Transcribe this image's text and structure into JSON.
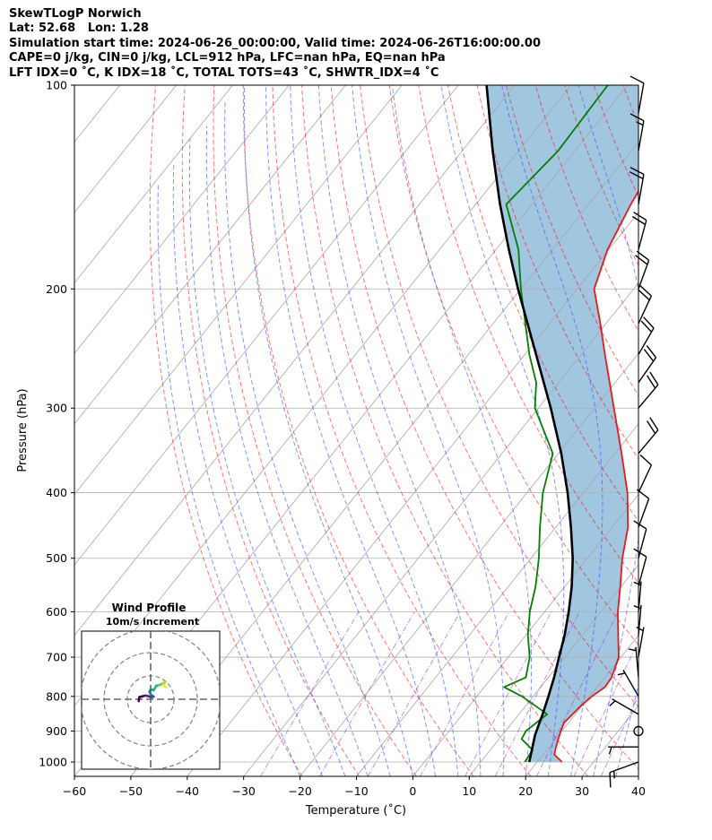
{
  "header": {
    "line1": "SkewTLogP Norwich",
    "line2": "Lat: 52.68   Lon: 1.28",
    "line3": "Simulation start time: 2024-06-26_00:00:00, Valid time: 2024-06-26T16:00:00.00",
    "line4": "CAPE=0 j/kg, CIN=0 j/kg, LCL=912 hPa, LFC=nan hPa, EQ=nan hPa",
    "line5": "LFT IDX=0$^\\circ$C, K IDX=18$^\\circ$C, TOTAL TOTS=43$^\\circ$C, SHWTR_IDX=4$^\\circ$C"
  },
  "chart_data": {
    "type": "line",
    "xlabel": "Temperature ($^\\circ$C)",
    "ylabel": "Pressure (hPa)",
    "xlim": [
      -60,
      40
    ],
    "ylim": [
      1050,
      100
    ],
    "yscale": "log",
    "x_ticks": [
      -60,
      -50,
      -40,
      -30,
      -20,
      -10,
      0,
      10,
      20,
      30,
      40
    ],
    "y_ticks": [
      1000,
      900,
      800,
      700,
      600,
      500,
      400,
      300,
      200,
      100
    ],
    "grid": true,
    "series": [
      {
        "role": "temperature",
        "color": "#e41a1c",
        "points": [
          {
            "p": 1000,
            "t": 24.4
          },
          {
            "p": 975,
            "t": 22.0
          },
          {
            "p": 950,
            "t": 21.2
          },
          {
            "p": 925,
            "t": 20.5
          },
          {
            "p": 900,
            "t": 19.8
          },
          {
            "p": 875,
            "t": 19.2
          },
          {
            "p": 850,
            "t": 19.5
          },
          {
            "p": 825,
            "t": 19.8
          },
          {
            "p": 800,
            "t": 20.4
          },
          {
            "p": 775,
            "t": 21.4
          },
          {
            "p": 750,
            "t": 21.2
          },
          {
            "p": 700,
            "t": 19.6
          },
          {
            "p": 650,
            "t": 16.4
          },
          {
            "p": 600,
            "t": 13.0
          },
          {
            "p": 550,
            "t": 9.8
          },
          {
            "p": 500,
            "t": 6.2
          },
          {
            "p": 450,
            "t": 2.8
          },
          {
            "p": 400,
            "t": -2.2
          },
          {
            "p": 350,
            "t": -8.8
          },
          {
            "p": 300,
            "t": -16.6
          },
          {
            "p": 250,
            "t": -25.8
          },
          {
            "p": 225,
            "t": -31.0
          },
          {
            "p": 200,
            "t": -37.0
          },
          {
            "p": 175,
            "t": -40.2
          },
          {
            "p": 150,
            "t": -42.5
          },
          {
            "p": 125,
            "t": -44.6
          },
          {
            "p": 100,
            "t": -47.6
          }
        ]
      },
      {
        "role": "dewpoint",
        "color": "#008000",
        "points": [
          {
            "p": 1000,
            "t": 17.8
          },
          {
            "p": 960,
            "t": 17.5
          },
          {
            "p": 925,
            "t": 14.0
          },
          {
            "p": 900,
            "t": 13.6
          },
          {
            "p": 850,
            "t": 15.0
          },
          {
            "p": 800,
            "t": 8.0
          },
          {
            "p": 775,
            "t": 3.5
          },
          {
            "p": 750,
            "t": 6.0
          },
          {
            "p": 700,
            "t": 3.8
          },
          {
            "p": 650,
            "t": 0.4
          },
          {
            "p": 600,
            "t": -2.6
          },
          {
            "p": 550,
            "t": -5.2
          },
          {
            "p": 500,
            "t": -8.6
          },
          {
            "p": 450,
            "t": -12.8
          },
          {
            "p": 400,
            "t": -17.2
          },
          {
            "p": 350,
            "t": -21.0
          },
          {
            "p": 300,
            "t": -30.6
          },
          {
            "p": 275,
            "t": -34.0
          },
          {
            "p": 250,
            "t": -39.2
          },
          {
            "p": 200,
            "t": -50.0
          },
          {
            "p": 175,
            "t": -56.0
          },
          {
            "p": 150,
            "t": -64.6
          },
          {
            "p": 125,
            "t": -63.0
          },
          {
            "p": 100,
            "t": -63.5
          }
        ]
      },
      {
        "role": "parcel",
        "color": "#000000",
        "points": [
          {
            "p": 1000,
            "t": 18.6
          },
          {
            "p": 912,
            "t": 15.8
          },
          {
            "p": 850,
            "t": 14.2
          },
          {
            "p": 800,
            "t": 12.7
          },
          {
            "p": 750,
            "t": 11.0
          },
          {
            "p": 700,
            "t": 9.0
          },
          {
            "p": 650,
            "t": 6.9
          },
          {
            "p": 600,
            "t": 4.3
          },
          {
            "p": 550,
            "t": 1.2
          },
          {
            "p": 500,
            "t": -2.6
          },
          {
            "p": 450,
            "t": -7.3
          },
          {
            "p": 400,
            "t": -12.8
          },
          {
            "p": 350,
            "t": -19.5
          },
          {
            "p": 300,
            "t": -27.8
          },
          {
            "p": 250,
            "t": -38.0
          },
          {
            "p": 200,
            "t": -50.5
          },
          {
            "p": 175,
            "t": -57.7
          },
          {
            "p": 150,
            "t": -65.7
          },
          {
            "p": 125,
            "t": -74.6
          },
          {
            "p": 100,
            "t": -85.0
          }
        ]
      }
    ],
    "wind_barbs": [
      {
        "p": 1000,
        "speed_kt": 15,
        "dir_deg": 250
      },
      {
        "p": 950,
        "speed_kt": 5,
        "dir_deg": 270
      },
      {
        "p": 900,
        "speed_kt": 0,
        "dir_deg": 0
      },
      {
        "p": 850,
        "speed_kt": 5,
        "dir_deg": 300
      },
      {
        "p": 800,
        "speed_kt": 5,
        "dir_deg": 330
      },
      {
        "p": 750,
        "speed_kt": 5,
        "dir_deg": 355
      },
      {
        "p": 700,
        "speed_kt": 5,
        "dir_deg": 10
      },
      {
        "p": 650,
        "speed_kt": 5,
        "dir_deg": 5
      },
      {
        "p": 600,
        "speed_kt": 5,
        "dir_deg": 5
      },
      {
        "p": 550,
        "speed_kt": 10,
        "dir_deg": 15
      },
      {
        "p": 500,
        "speed_kt": 10,
        "dir_deg": 15
      },
      {
        "p": 450,
        "speed_kt": 10,
        "dir_deg": 20
      },
      {
        "p": 400,
        "speed_kt": 10,
        "dir_deg": 25
      },
      {
        "p": 350,
        "speed_kt": 20,
        "dir_deg": 40
      },
      {
        "p": 300,
        "speed_kt": 20,
        "dir_deg": 40
      },
      {
        "p": 275,
        "speed_kt": 20,
        "dir_deg": 35
      },
      {
        "p": 250,
        "speed_kt": 20,
        "dir_deg": 30
      },
      {
        "p": 225,
        "speed_kt": 20,
        "dir_deg": 25
      },
      {
        "p": 200,
        "speed_kt": 20,
        "dir_deg": 20
      },
      {
        "p": 175,
        "speed_kt": 20,
        "dir_deg": 15
      },
      {
        "p": 150,
        "speed_kt": 20,
        "dir_deg": 10
      },
      {
        "p": 125,
        "speed_kt": 15,
        "dir_deg": 10
      },
      {
        "p": 110,
        "speed_kt": 10,
        "dir_deg": 10
      }
    ],
    "inset": {
      "title": "Wind Profile",
      "subtitle": "10m/s increment",
      "hodograph": [
        {
          "u": -3.2,
          "v": -0.5
        },
        {
          "u": -3.0,
          "v": 0.6
        },
        {
          "u": -1.4,
          "v": 1.0
        },
        {
          "u": -0.5,
          "v": 0.8
        },
        {
          "u": 0.2,
          "v": 0.5
        },
        {
          "u": 0.8,
          "v": 0.7
        },
        {
          "u": 0.1,
          "v": 1.2
        },
        {
          "u": -0.3,
          "v": 2.0
        },
        {
          "u": 0.0,
          "v": 2.7
        },
        {
          "u": 0.8,
          "v": 2.4
        },
        {
          "u": 1.5,
          "v": 3.6
        },
        {
          "u": 2.2,
          "v": 3.8
        },
        {
          "u": 2.8,
          "v": 4.0
        },
        {
          "u": 3.3,
          "v": 4.3
        },
        {
          "u": 3.8,
          "v": 4.6
        },
        {
          "u": 3.4,
          "v": 3.8
        },
        {
          "u": 4.2,
          "v": 3.2
        }
      ]
    }
  }
}
